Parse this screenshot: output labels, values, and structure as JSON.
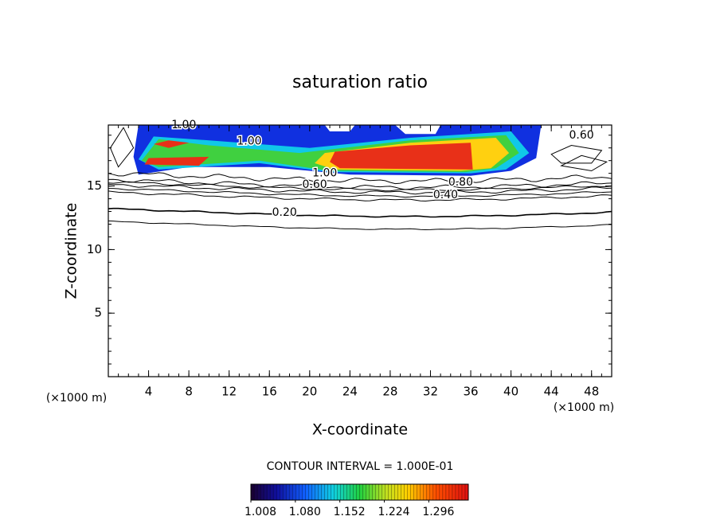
{
  "chart_data": {
    "type": "contour",
    "title": "saturation ratio",
    "x_label": "X-coordinate",
    "y_label": "Z-coordinate",
    "x_unit": "(×1000 m)",
    "y_unit": "(×1000 m)",
    "xlim": [
      0,
      50
    ],
    "ylim": [
      0,
      19.8
    ],
    "xticks": [
      4,
      8,
      12,
      16,
      20,
      24,
      28,
      32,
      36,
      40,
      44,
      48
    ],
    "yticks": [
      5,
      10,
      15
    ],
    "contour_interval_label": "CONTOUR INTERVAL = 1.000E-01",
    "contour_levels": [
      {
        "value": 0.2,
        "label": "0.20"
      },
      {
        "value": 0.4,
        "label": "0.40"
      },
      {
        "value": 0.6,
        "label": "0.60"
      },
      {
        "value": 0.8,
        "label": "0.80"
      },
      {
        "value": 1.0,
        "label": "1.00"
      }
    ],
    "colorbar": {
      "clim": [
        1.008,
        1.36
      ],
      "ticks": [
        {
          "value": 1.008,
          "label": "1.008"
        },
        {
          "value": 1.08,
          "label": "1.080"
        },
        {
          "value": 1.152,
          "label": "1.152"
        },
        {
          "value": 1.224,
          "label": "1.224"
        },
        {
          "value": 1.296,
          "label": "1.296"
        }
      ]
    }
  }
}
